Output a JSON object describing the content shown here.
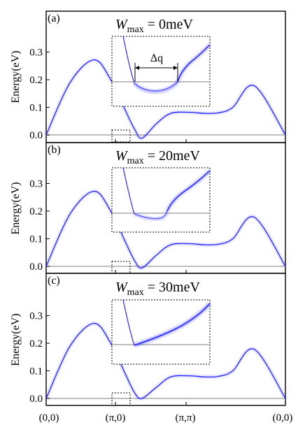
{
  "figure": {
    "ylabel": "Energy(eV)",
    "x_tick_labels": [
      "(0,0)",
      "(π,0)",
      "(π,π)",
      "(0,0)"
    ],
    "y_tick_labels": [
      "0.0",
      "0.1",
      "0.2",
      "0.3"
    ],
    "inset_annotation": "Δq",
    "colors": {
      "band": "#2a2aff",
      "baseline": "#999999",
      "frame": "#000000"
    }
  },
  "chart_data": [
    {
      "type": "line",
      "panel_label": "(a)",
      "title_main": "W",
      "title_sub": "max",
      "title_rest": " = 0meV",
      "xlabel": "",
      "ylabel": "Energy(eV)",
      "x_ticks": [
        "(0,0)",
        "(π,0)",
        "(π,π)",
        "(0,0)"
      ],
      "ylim": [
        -0.02,
        0.35
      ],
      "dip_min": -0.012,
      "inset_annotation": "Δq"
    },
    {
      "type": "line",
      "panel_label": "(b)",
      "title_main": "W",
      "title_sub": "max",
      "title_rest": " = 20meV",
      "xlabel": "",
      "ylabel": "Energy(eV)",
      "x_ticks": [
        "(0,0)",
        "(π,0)",
        "(π,π)",
        "(0,0)"
      ],
      "ylim": [
        -0.02,
        0.35
      ],
      "dip_min": -0.006
    },
    {
      "type": "line",
      "panel_label": "(c)",
      "title_main": "W",
      "title_sub": "max",
      "title_rest": " = 30meV",
      "xlabel": "",
      "ylabel": "Energy(eV)",
      "x_ticks": [
        "(0,0)",
        "(π,0)",
        "(π,π)",
        "(0,0)"
      ],
      "ylim": [
        -0.02,
        0.35
      ],
      "dip_min": 0.0
    }
  ],
  "band_shape": {
    "x_positions": [
      0.0,
      0.1,
      0.2,
      0.27,
      0.33,
      0.37,
      0.4,
      0.46,
      0.52,
      0.6,
      0.66,
      0.72,
      0.78,
      0.87,
      1.0
    ],
    "energies": [
      0.0,
      0.19,
      0.272,
      0.2,
      0.09,
      0.02,
      -0.005,
      0.04,
      0.078,
      0.082,
      0.078,
      0.08,
      0.1,
      0.178,
      0.0
    ]
  }
}
